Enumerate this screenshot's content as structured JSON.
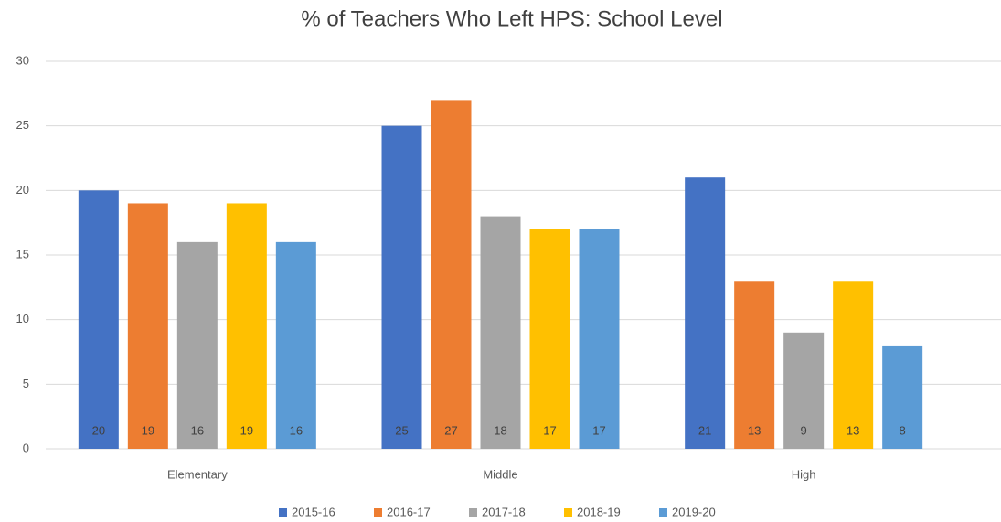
{
  "chart_data": {
    "type": "bar",
    "title": "% of Teachers Who Left HPS: School Level",
    "categories": [
      "Elementary",
      "Middle",
      "High"
    ],
    "series": [
      {
        "name": "2015-16",
        "color": "#4472c4",
        "values": [
          20,
          25,
          21
        ]
      },
      {
        "name": "2016-17",
        "color": "#ed7d31",
        "values": [
          19,
          27,
          13
        ]
      },
      {
        "name": "2017-18",
        "color": "#a5a5a5",
        "values": [
          16,
          18,
          9
        ]
      },
      {
        "name": "2018-19",
        "color": "#ffc000",
        "values": [
          19,
          17,
          13
        ]
      },
      {
        "name": "2019-20",
        "color": "#5b9bd5",
        "values": [
          16,
          17,
          8
        ]
      }
    ],
    "ylim": [
      0,
      30
    ],
    "yticks": [
      0,
      5,
      10,
      15,
      20,
      25,
      30
    ],
    "grid": true,
    "legend": "bottom"
  }
}
